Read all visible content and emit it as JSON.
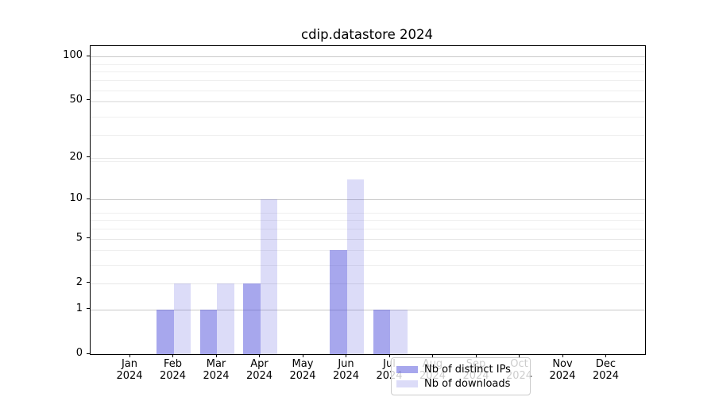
{
  "figure": {
    "background": "#ffffff"
  },
  "chart_data": {
    "type": "bar",
    "title": "cdip.datastore 2024",
    "x_months": [
      "Jan",
      "Feb",
      "Mar",
      "Apr",
      "May",
      "Jun",
      "Jul",
      "Aug",
      "Sep",
      "Oct",
      "Nov",
      "Dec"
    ],
    "x_year": "2024",
    "series": [
      {
        "name": "Nb of distinct IPs",
        "color": "#5050dc",
        "alpha": 0.5,
        "values": [
          0,
          1,
          1,
          2,
          0,
          4,
          1,
          0,
          0,
          0,
          0,
          0
        ]
      },
      {
        "name": "Nb of downloads",
        "color": "#5050dc",
        "alpha": 0.2,
        "values": [
          0,
          2,
          2,
          10,
          0,
          14,
          1,
          0,
          0,
          0,
          0,
          0
        ]
      }
    ],
    "yticks": [
      0,
      1,
      2,
      5,
      10,
      20,
      50,
      100
    ],
    "yscale": "log10(1+y)",
    "ylim": [
      0,
      118
    ],
    "xlabel": "",
    "ylabel": "",
    "grid": "horizontal",
    "legend_position": "inside-bottom-center"
  }
}
